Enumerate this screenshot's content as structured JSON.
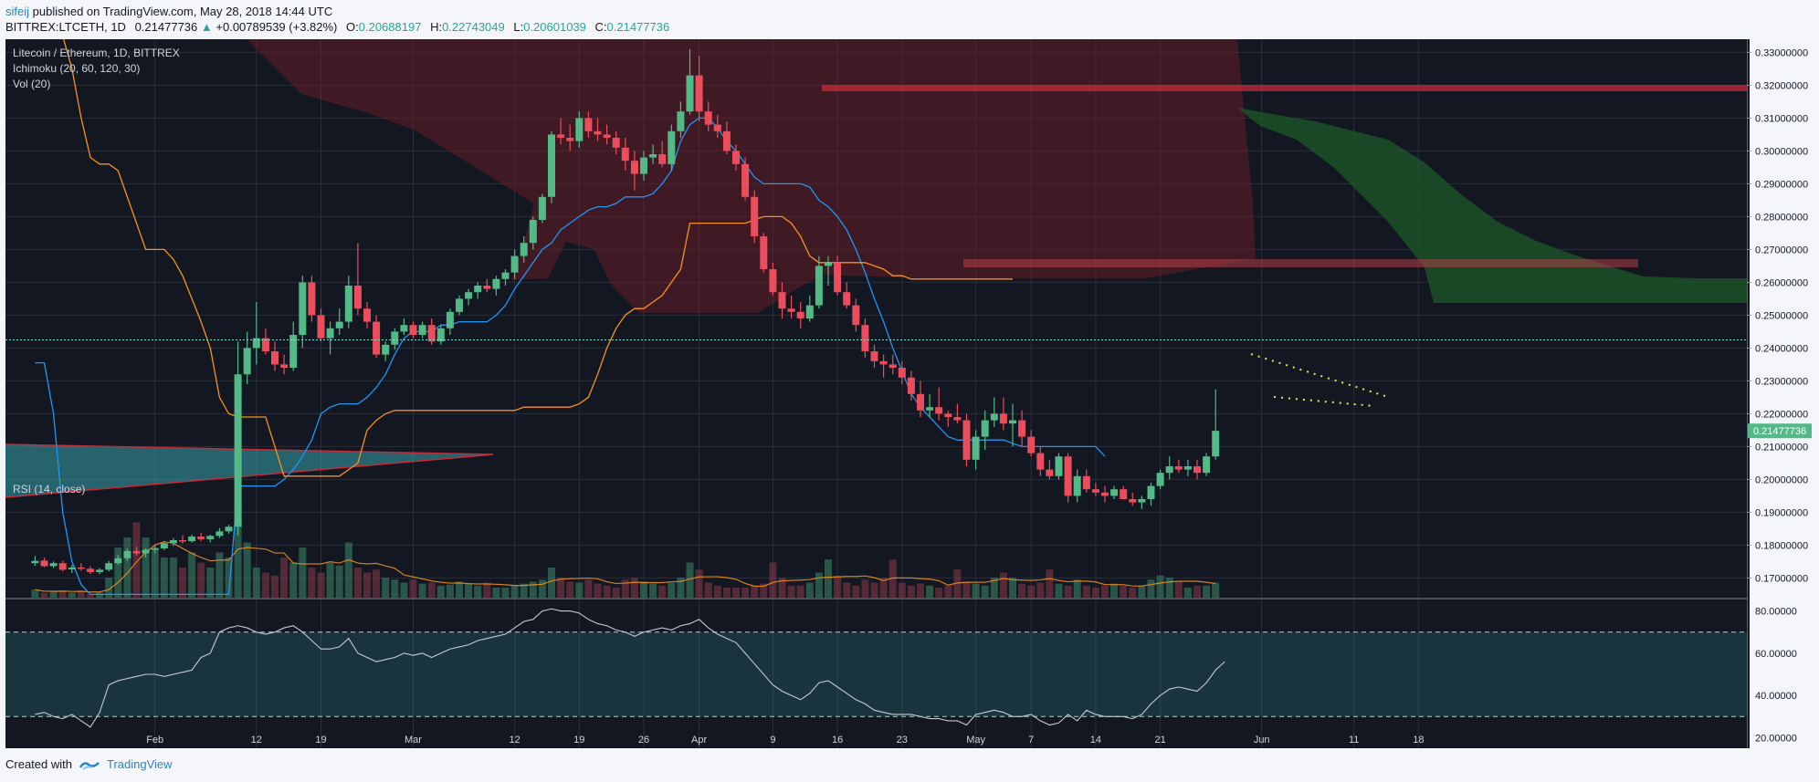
{
  "header": {
    "user": "sifeij",
    "published": "published on TradingView.com, May 28, 2018 14:44 UTC"
  },
  "ohlc": {
    "symbol": "BITTREX:LTCETH, 1D",
    "last": "0.21477736",
    "change": "+0.00789539 (+3.82%)",
    "o_label": "O:",
    "o": "0.20688197",
    "h_label": "H:",
    "h": "0.22743049",
    "l_label": "L:",
    "l": "0.20601039",
    "c_label": "C:",
    "c": "0.21477736"
  },
  "legend": {
    "title": "Litecoin / Ethereum, 1D, BITTREX",
    "ichimoku": "Ichimoku (20, 60, 120, 30)",
    "vol": "Vol (20)",
    "rsi": "RSI (14, close)"
  },
  "footer": {
    "created": "Created with",
    "brand": "TradingView"
  },
  "colors": {
    "background": "#131722",
    "up": "#53b987",
    "down": "#eb4d5c",
    "grid": "#2a2e39",
    "baseline": "#2196f3",
    "conversion": "#f7931a"
  },
  "chart_data": {
    "type": "candlestick",
    "price_axis": {
      "ticks": [
        "0.33000000",
        "0.32000000",
        "0.31000000",
        "0.30000000",
        "0.29000000",
        "0.28000000",
        "0.27000000",
        "0.26000000",
        "0.25000000",
        "0.24000000",
        "0.23000000",
        "0.22000000",
        "0.21000000",
        "0.20000000",
        "0.19000000",
        "0.18000000",
        "0.17000000"
      ],
      "last_price_label": "0.21477736",
      "range": [
        0.164,
        0.334
      ]
    },
    "rsi_axis": {
      "ticks": [
        "80.00000",
        "60.00000",
        "40.00000",
        "20.00000"
      ],
      "range": [
        15,
        85
      ],
      "bands": [
        30,
        70
      ]
    },
    "x_ticks": [
      {
        "label": "Feb",
        "day": 13
      },
      {
        "label": "12",
        "day": 24
      },
      {
        "label": "19",
        "day": 31
      },
      {
        "label": "Mar",
        "day": 41
      },
      {
        "label": "12",
        "day": 52
      },
      {
        "label": "19",
        "day": 59
      },
      {
        "label": "26",
        "day": 66
      },
      {
        "label": "Apr",
        "day": 72
      },
      {
        "label": "9",
        "day": 80
      },
      {
        "label": "16",
        "day": 87
      },
      {
        "label": "23",
        "day": 94
      },
      {
        "label": "May",
        "day": 102
      },
      {
        "label": "7",
        "day": 108
      },
      {
        "label": "14",
        "day": 115
      },
      {
        "label": "21",
        "day": 122
      },
      {
        "label": "Jun",
        "day": 133
      },
      {
        "label": "11",
        "day": 143
      },
      {
        "label": "18",
        "day": 150
      }
    ],
    "candles": [
      [
        0.1745,
        0.1767,
        0.1737,
        0.1752
      ],
      [
        0.1753,
        0.1762,
        0.1733,
        0.1736
      ],
      [
        0.1736,
        0.175,
        0.173,
        0.1745
      ],
      [
        0.1745,
        0.1752,
        0.172,
        0.1725
      ],
      [
        0.1726,
        0.174,
        0.1715,
        0.1732
      ],
      [
        0.1732,
        0.1745,
        0.1722,
        0.1728
      ],
      [
        0.1728,
        0.1736,
        0.1712,
        0.1718
      ],
      [
        0.1718,
        0.173,
        0.1712,
        0.1725
      ],
      [
        0.1725,
        0.1752,
        0.172,
        0.1745
      ],
      [
        0.1745,
        0.177,
        0.174,
        0.176
      ],
      [
        0.176,
        0.179,
        0.1752,
        0.1782
      ],
      [
        0.1782,
        0.1795,
        0.1768,
        0.1775
      ],
      [
        0.1775,
        0.179,
        0.1762,
        0.1786
      ],
      [
        0.1786,
        0.1802,
        0.1775,
        0.179
      ],
      [
        0.179,
        0.1812,
        0.1785,
        0.1806
      ],
      [
        0.1806,
        0.1822,
        0.1797,
        0.1815
      ],
      [
        0.1815,
        0.183,
        0.1805,
        0.1812
      ],
      [
        0.1812,
        0.1832,
        0.1808,
        0.1826
      ],
      [
        0.1826,
        0.1838,
        0.1812,
        0.1818
      ],
      [
        0.1818,
        0.1832,
        0.1808,
        0.1828
      ],
      [
        0.1828,
        0.1852,
        0.1822,
        0.1842
      ],
      [
        0.1842,
        0.1862,
        0.1835,
        0.1856
      ],
      [
        0.1856,
        0.242,
        0.183,
        0.232
      ],
      [
        0.232,
        0.245,
        0.229,
        0.24
      ],
      [
        0.24,
        0.254,
        0.235,
        0.243
      ],
      [
        0.243,
        0.246,
        0.238,
        0.239
      ],
      [
        0.239,
        0.242,
        0.233,
        0.235
      ],
      [
        0.235,
        0.238,
        0.232,
        0.234
      ],
      [
        0.234,
        0.248,
        0.233,
        0.244
      ],
      [
        0.244,
        0.262,
        0.24,
        0.26
      ],
      [
        0.26,
        0.262,
        0.248,
        0.25
      ],
      [
        0.25,
        0.252,
        0.242,
        0.243
      ],
      [
        0.243,
        0.248,
        0.238,
        0.246
      ],
      [
        0.246,
        0.252,
        0.244,
        0.248
      ],
      [
        0.248,
        0.262,
        0.246,
        0.259
      ],
      [
        0.259,
        0.272,
        0.25,
        0.252
      ],
      [
        0.252,
        0.254,
        0.246,
        0.248
      ],
      [
        0.248,
        0.25,
        0.237,
        0.238
      ],
      [
        0.238,
        0.242,
        0.236,
        0.241
      ],
      [
        0.241,
        0.246,
        0.2395,
        0.245
      ],
      [
        0.245,
        0.249,
        0.244,
        0.247
      ],
      [
        0.247,
        0.248,
        0.243,
        0.244
      ],
      [
        0.244,
        0.248,
        0.243,
        0.247
      ],
      [
        0.247,
        0.249,
        0.241,
        0.242
      ],
      [
        0.242,
        0.247,
        0.241,
        0.246
      ],
      [
        0.246,
        0.252,
        0.244,
        0.251
      ],
      [
        0.251,
        0.256,
        0.25,
        0.255
      ],
      [
        0.255,
        0.258,
        0.253,
        0.257
      ],
      [
        0.257,
        0.26,
        0.255,
        0.259
      ],
      [
        0.259,
        0.261,
        0.257,
        0.258
      ],
      [
        0.258,
        0.262,
        0.256,
        0.261
      ],
      [
        0.261,
        0.264,
        0.259,
        0.263
      ],
      [
        0.263,
        0.27,
        0.261,
        0.268
      ],
      [
        0.268,
        0.274,
        0.266,
        0.272
      ],
      [
        0.272,
        0.28,
        0.27,
        0.279
      ],
      [
        0.279,
        0.287,
        0.278,
        0.286
      ],
      [
        0.286,
        0.306,
        0.284,
        0.305
      ],
      [
        0.305,
        0.31,
        0.302,
        0.304
      ],
      [
        0.304,
        0.308,
        0.3,
        0.303
      ],
      [
        0.303,
        0.312,
        0.301,
        0.31
      ],
      [
        0.31,
        0.312,
        0.304,
        0.306
      ],
      [
        0.306,
        0.31,
        0.303,
        0.305
      ],
      [
        0.305,
        0.308,
        0.302,
        0.304
      ],
      [
        0.304,
        0.306,
        0.299,
        0.301
      ],
      [
        0.301,
        0.304,
        0.294,
        0.297
      ],
      [
        0.297,
        0.3,
        0.288,
        0.293
      ],
      [
        0.293,
        0.3,
        0.291,
        0.298
      ],
      [
        0.298,
        0.302,
        0.296,
        0.299
      ],
      [
        0.299,
        0.303,
        0.295,
        0.296
      ],
      [
        0.296,
        0.308,
        0.294,
        0.306
      ],
      [
        0.306,
        0.315,
        0.304,
        0.312
      ],
      [
        0.312,
        0.331,
        0.311,
        0.323
      ],
      [
        0.323,
        0.329,
        0.309,
        0.312
      ],
      [
        0.312,
        0.315,
        0.306,
        0.308
      ],
      [
        0.308,
        0.311,
        0.304,
        0.306
      ],
      [
        0.306,
        0.309,
        0.299,
        0.3
      ],
      [
        0.3,
        0.302,
        0.294,
        0.296
      ],
      [
        0.296,
        0.298,
        0.285,
        0.286
      ],
      [
        0.286,
        0.288,
        0.272,
        0.274
      ],
      [
        0.274,
        0.275,
        0.263,
        0.264
      ],
      [
        0.264,
        0.266,
        0.256,
        0.257
      ],
      [
        0.257,
        0.26,
        0.249,
        0.252
      ],
      [
        0.252,
        0.256,
        0.249,
        0.251
      ],
      [
        0.251,
        0.254,
        0.246,
        0.249
      ],
      [
        0.249,
        0.256,
        0.248,
        0.253
      ],
      [
        0.253,
        0.268,
        0.252,
        0.265
      ],
      [
        0.265,
        0.268,
        0.259,
        0.266
      ],
      [
        0.266,
        0.268,
        0.256,
        0.257
      ],
      [
        0.257,
        0.26,
        0.252,
        0.253
      ],
      [
        0.253,
        0.255,
        0.245,
        0.247
      ],
      [
        0.247,
        0.249,
        0.237,
        0.239
      ],
      [
        0.239,
        0.241,
        0.234,
        0.236
      ],
      [
        0.236,
        0.238,
        0.231,
        0.235
      ],
      [
        0.235,
        0.238,
        0.232,
        0.234
      ],
      [
        0.234,
        0.236,
        0.229,
        0.231
      ],
      [
        0.231,
        0.233,
        0.224,
        0.226
      ],
      [
        0.226,
        0.23,
        0.219,
        0.221
      ],
      [
        0.221,
        0.226,
        0.219,
        0.222
      ],
      [
        0.222,
        0.228,
        0.218,
        0.22
      ],
      [
        0.22,
        0.221,
        0.216,
        0.219
      ],
      [
        0.219,
        0.223,
        0.217,
        0.218
      ],
      [
        0.218,
        0.22,
        0.204,
        0.206
      ],
      [
        0.206,
        0.215,
        0.203,
        0.213
      ],
      [
        0.213,
        0.221,
        0.209,
        0.218
      ],
      [
        0.218,
        0.225,
        0.216,
        0.22
      ],
      [
        0.22,
        0.225,
        0.215,
        0.217
      ],
      [
        0.217,
        0.223,
        0.21,
        0.218
      ],
      [
        0.218,
        0.221,
        0.21,
        0.213
      ],
      [
        0.213,
        0.215,
        0.207,
        0.208
      ],
      [
        0.208,
        0.21,
        0.201,
        0.203
      ],
      [
        0.203,
        0.206,
        0.2,
        0.201
      ],
      [
        0.201,
        0.208,
        0.2,
        0.207
      ],
      [
        0.207,
        0.208,
        0.193,
        0.195
      ],
      [
        0.195,
        0.203,
        0.193,
        0.201
      ],
      [
        0.201,
        0.203,
        0.196,
        0.197
      ],
      [
        0.197,
        0.199,
        0.195,
        0.196
      ],
      [
        0.196,
        0.198,
        0.193,
        0.195
      ],
      [
        0.195,
        0.198,
        0.194,
        0.197
      ],
      [
        0.197,
        0.198,
        0.194,
        0.194
      ],
      [
        0.194,
        0.196,
        0.192,
        0.193
      ],
      [
        0.193,
        0.195,
        0.191,
        0.194
      ],
      [
        0.194,
        0.199,
        0.192,
        0.198
      ],
      [
        0.198,
        0.203,
        0.197,
        0.202
      ],
      [
        0.202,
        0.207,
        0.2,
        0.204
      ],
      [
        0.204,
        0.206,
        0.202,
        0.203
      ],
      [
        0.203,
        0.206,
        0.201,
        0.204
      ],
      [
        0.204,
        0.206,
        0.2,
        0.202
      ],
      [
        0.202,
        0.208,
        0.201,
        0.207
      ],
      [
        0.207,
        0.2274,
        0.206,
        0.2148
      ]
    ],
    "volume": [
      0.08,
      0.05,
      0.06,
      0.07,
      0.05,
      0.07,
      0.04,
      0.05,
      0.2,
      0.5,
      0.6,
      0.75,
      0.6,
      0.5,
      0.4,
      0.4,
      0.3,
      0.45,
      0.35,
      0.3,
      0.45,
      0.4,
      0.95,
      0.55,
      0.3,
      0.25,
      0.22,
      0.4,
      0.35,
      0.5,
      0.3,
      0.25,
      0.35,
      0.32,
      0.55,
      0.3,
      0.25,
      0.28,
      0.2,
      0.18,
      0.15,
      0.18,
      0.14,
      0.15,
      0.12,
      0.13,
      0.16,
      0.14,
      0.12,
      0.15,
      0.1,
      0.1,
      0.12,
      0.14,
      0.16,
      0.18,
      0.3,
      0.2,
      0.16,
      0.15,
      0.18,
      0.14,
      0.12,
      0.1,
      0.18,
      0.2,
      0.16,
      0.14,
      0.12,
      0.15,
      0.2,
      0.35,
      0.28,
      0.15,
      0.12,
      0.1,
      0.1,
      0.1,
      0.12,
      0.14,
      0.35,
      0.2,
      0.12,
      0.12,
      0.15,
      0.25,
      0.38,
      0.22,
      0.15,
      0.12,
      0.18,
      0.15,
      0.2,
      0.38,
      0.15,
      0.12,
      0.14,
      0.12,
      0.1,
      0.12,
      0.28,
      0.16,
      0.14,
      0.12,
      0.2,
      0.25,
      0.2,
      0.14,
      0.12,
      0.15,
      0.28,
      0.14,
      0.12,
      0.18,
      0.12,
      0.1,
      0.12,
      0.14,
      0.12,
      0.1,
      0.12,
      0.18,
      0.22,
      0.2,
      0.16,
      0.1,
      0.12,
      0.12,
      0.15
    ],
    "rsi": [
      31,
      32,
      30,
      29,
      31,
      28,
      25,
      32,
      45,
      47,
      48,
      49,
      50,
      50,
      49,
      50,
      51,
      52,
      58,
      60,
      70,
      72,
      73,
      72,
      70,
      69,
      70,
      72,
      73,
      70,
      66,
      62,
      62,
      63,
      67,
      60,
      58,
      56,
      57,
      58,
      60,
      59,
      60,
      58,
      60,
      62,
      63,
      64,
      66,
      67,
      68,
      69,
      72,
      75,
      76,
      80,
      81,
      80,
      80,
      79,
      76,
      74,
      73,
      71,
      70,
      68,
      70,
      71,
      72,
      71,
      73,
      74,
      76,
      72,
      69,
      67,
      65,
      60,
      55,
      50,
      45,
      42,
      40,
      38,
      41,
      46,
      47,
      44,
      41,
      38,
      36,
      33,
      32,
      31,
      31,
      31,
      30,
      29,
      29,
      28,
      28,
      26,
      31,
      32,
      33,
      32,
      30,
      30,
      31,
      28,
      26,
      27,
      31,
      28,
      33,
      31,
      30,
      30,
      30,
      29,
      31,
      36,
      40,
      43,
      44,
      43,
      42,
      46,
      52,
      56
    ],
    "conversion": [
      null,
      null,
      null,
      0.335,
      0.325,
      0.31,
      0.298,
      0.296,
      0.296,
      0.294,
      0.286,
      0.278,
      0.27,
      0.27,
      0.27,
      0.267,
      0.262,
      0.255,
      0.248,
      0.24,
      0.225,
      0.22,
      0.219,
      0.219,
      0.219,
      0.219,
      0.21,
      0.201,
      0.201,
      0.201,
      0.201,
      0.201,
      0.201,
      0.201,
      0.203,
      0.205,
      0.215,
      0.218,
      0.22,
      0.221,
      0.221,
      0.221,
      0.221,
      0.221,
      0.221,
      0.221,
      0.221,
      0.221,
      0.221,
      0.221,
      0.221,
      0.221,
      0.221,
      0.222,
      0.222,
      0.222,
      0.222,
      0.222,
      0.222,
      0.223,
      0.225,
      0.232,
      0.24,
      0.246,
      0.25,
      0.252,
      0.252,
      0.254,
      0.256,
      0.26,
      0.264,
      0.278,
      0.278,
      0.278,
      0.278,
      0.278,
      0.278,
      0.278,
      0.279,
      0.28,
      0.28,
      0.28,
      0.278,
      0.274,
      0.268,
      0.266,
      0.266,
      0.266,
      0.266,
      0.266,
      0.266,
      0.265,
      0.264,
      0.262,
      0.262,
      0.261,
      0.261,
      0.261,
      0.261,
      0.261,
      0.261,
      0.261,
      0.261,
      0.261,
      0.261,
      0.261,
      0.261
    ],
    "baseline": [
      0.2355,
      0.2355,
      0.22,
      0.19,
      0.175,
      0.168,
      0.165,
      0.165,
      0.165,
      0.165,
      0.165,
      0.165,
      0.165,
      0.165,
      0.165,
      0.165,
      0.165,
      0.165,
      0.165,
      0.165,
      0.165,
      0.165,
      0.198,
      0.198,
      0.198,
      0.198,
      0.198,
      0.2,
      0.203,
      0.207,
      0.212,
      0.22,
      0.222,
      0.223,
      0.223,
      0.223,
      0.225,
      0.228,
      0.232,
      0.238,
      0.243,
      0.245,
      0.245,
      0.245,
      0.247,
      0.247,
      0.248,
      0.248,
      0.248,
      0.248,
      0.25,
      0.253,
      0.258,
      0.262,
      0.266,
      0.27,
      0.272,
      0.276,
      0.278,
      0.28,
      0.282,
      0.283,
      0.283,
      0.284,
      0.286,
      0.286,
      0.286,
      0.287,
      0.29,
      0.294,
      0.303,
      0.308,
      0.31,
      0.31,
      0.307,
      0.303,
      0.3,
      0.296,
      0.292,
      0.29,
      0.29,
      0.29,
      0.29,
      0.29,
      0.289,
      0.285,
      0.283,
      0.28,
      0.276,
      0.27,
      0.263,
      0.255,
      0.248,
      0.24,
      0.233,
      0.226,
      0.222,
      0.219,
      0.216,
      0.213,
      0.212,
      0.212,
      0.212,
      0.212,
      0.212,
      0.212,
      0.211,
      0.21,
      0.21,
      0.21,
      0.21,
      0.21,
      0.21,
      0.21,
      0.21,
      0.21,
      0.207
    ]
  }
}
